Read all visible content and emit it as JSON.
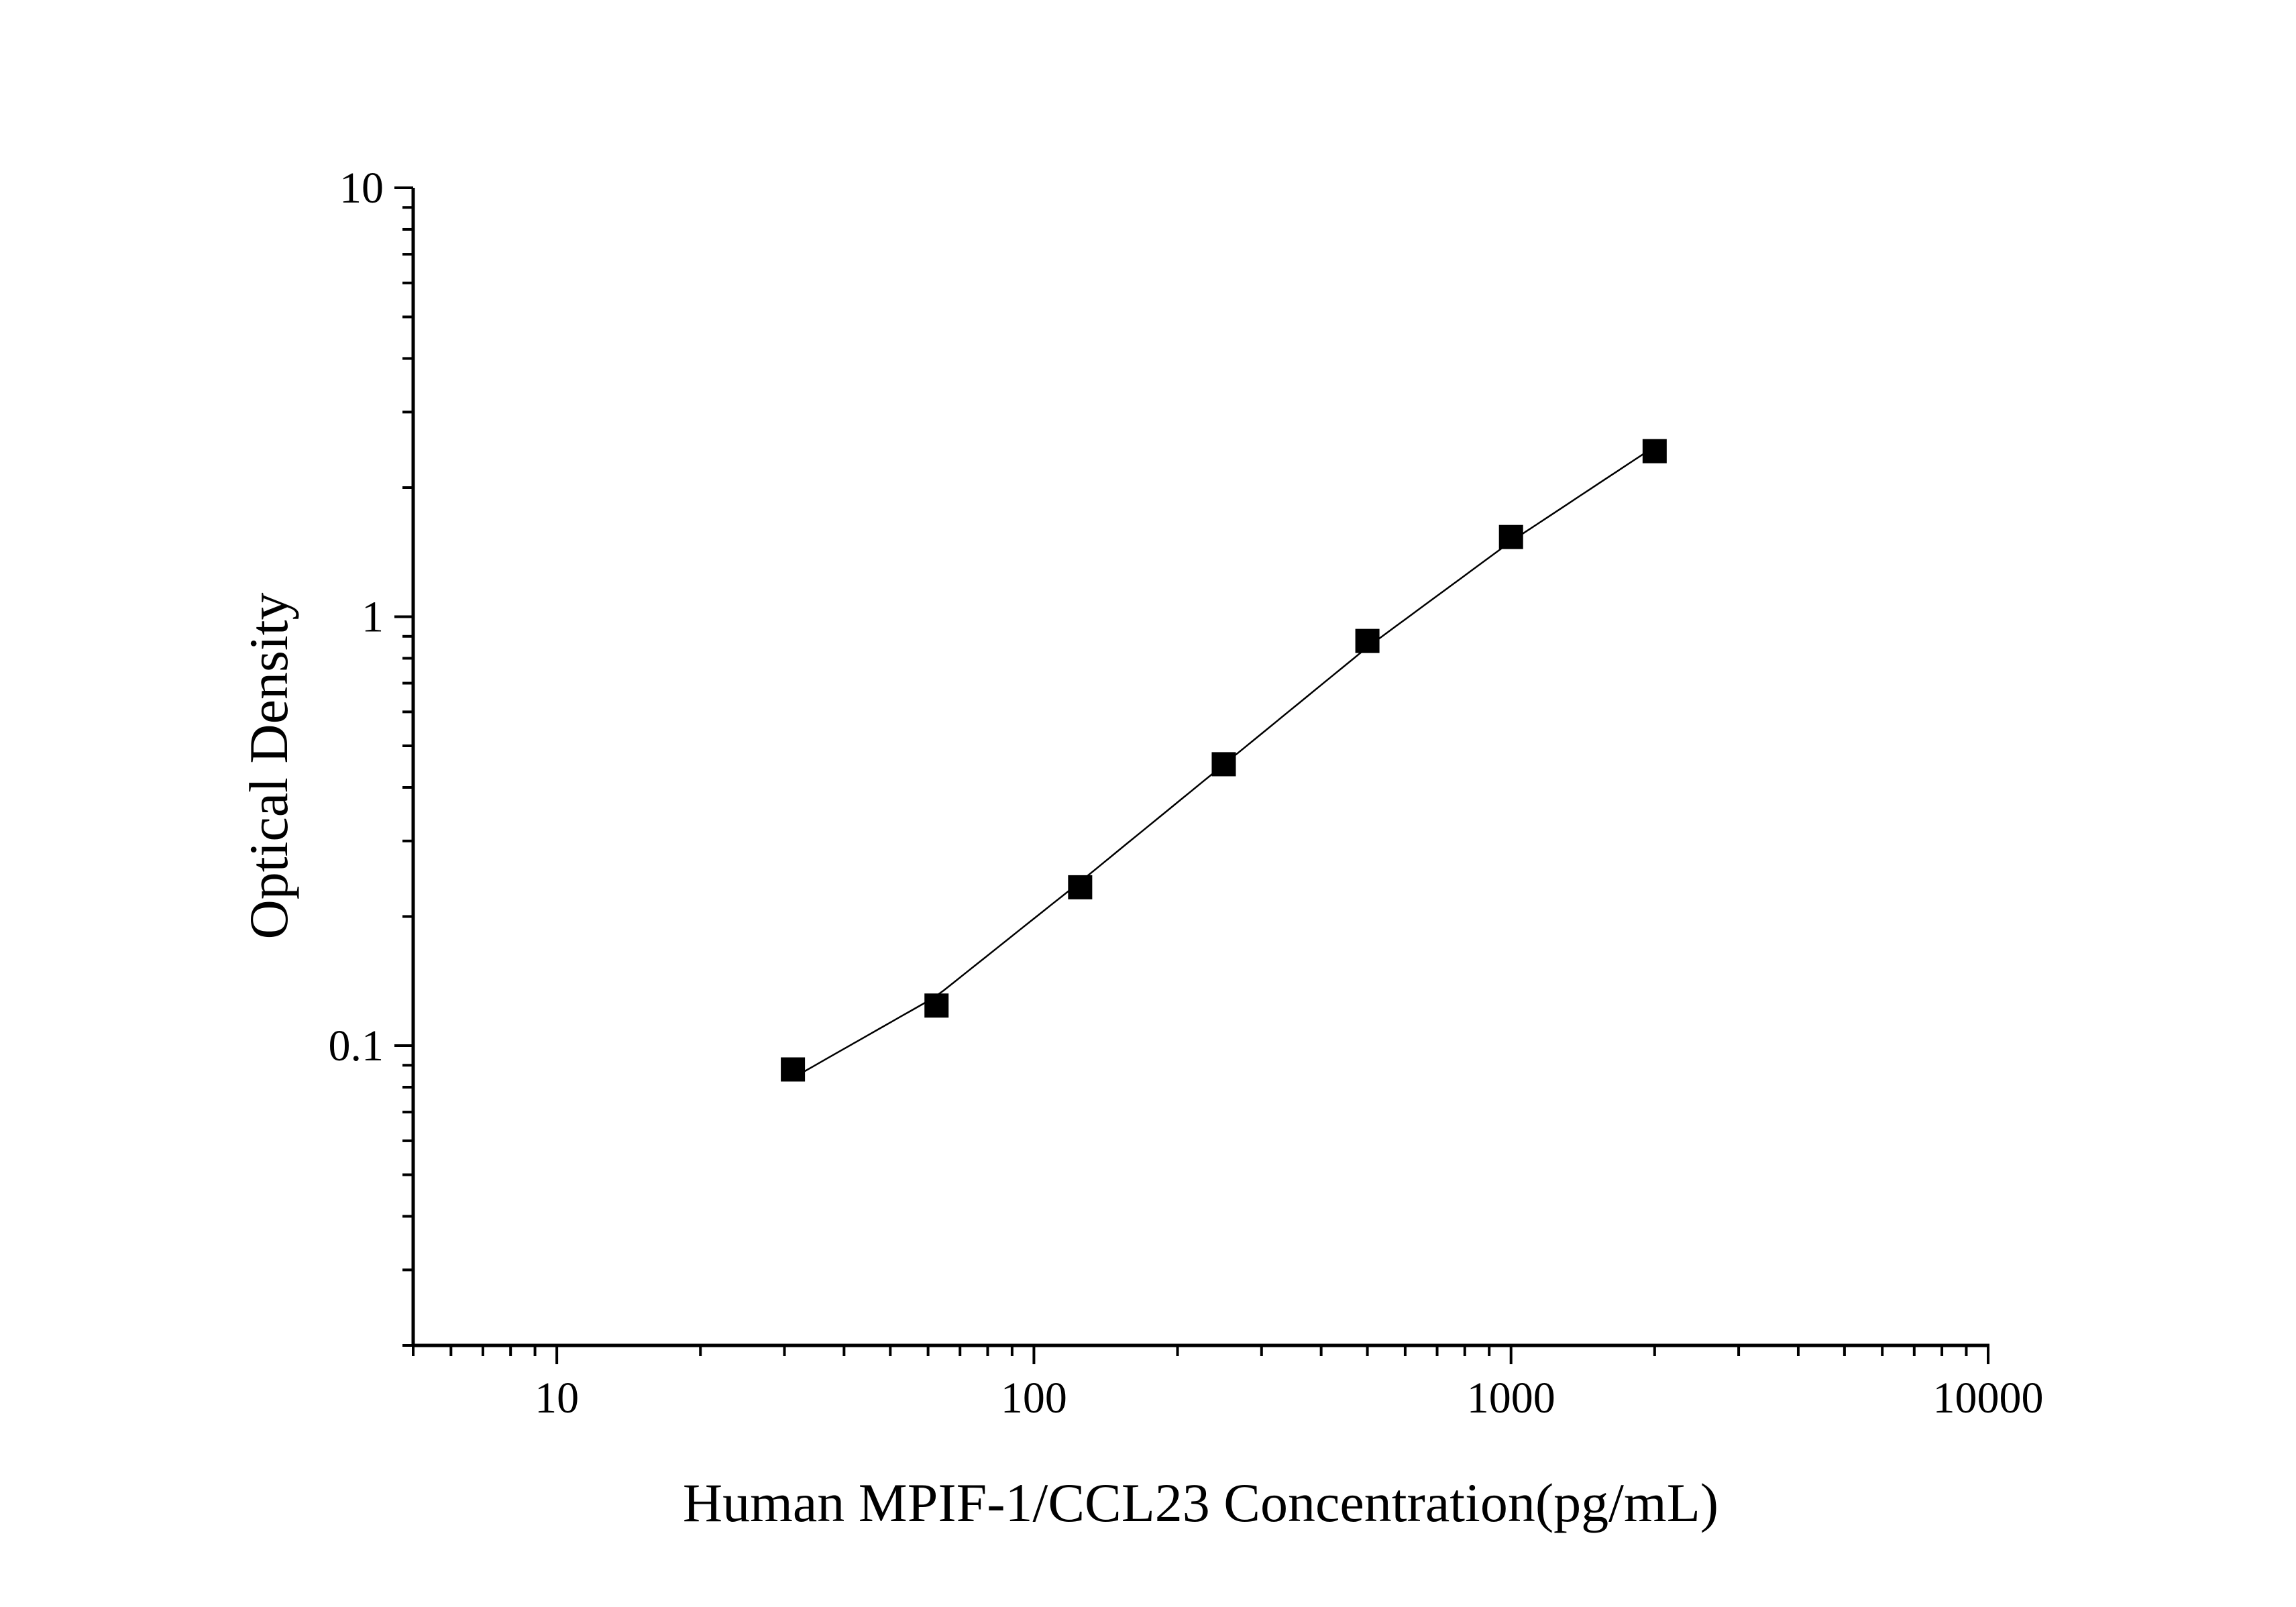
{
  "chart_data": {
    "type": "scatter",
    "title": "",
    "xlabel": "Human MPIF-1/CCL23 Concentration(pg/mL)",
    "ylabel": "Optical Density",
    "x_scale": "log",
    "y_scale": "log",
    "xlim": [
      5,
      10000
    ],
    "ylim": [
      0.02,
      10
    ],
    "x_ticks": [
      {
        "value": 10,
        "label": "10"
      },
      {
        "value": 100,
        "label": "100"
      },
      {
        "value": 1000,
        "label": "1000"
      },
      {
        "value": 10000,
        "label": "10000"
      }
    ],
    "y_ticks": [
      {
        "value": 0.1,
        "label": "0.1"
      },
      {
        "value": 1,
        "label": "1"
      },
      {
        "value": 10,
        "label": "10"
      }
    ],
    "grid": false,
    "legend": "none",
    "series": [
      {
        "marker": "square",
        "color": "#000000",
        "fit_line": true,
        "points": [
          {
            "x": 31.25,
            "y": 0.088
          },
          {
            "x": 62.5,
            "y": 0.124
          },
          {
            "x": 125,
            "y": 0.234
          },
          {
            "x": 250,
            "y": 0.453
          },
          {
            "x": 500,
            "y": 0.878
          },
          {
            "x": 1000,
            "y": 1.534
          },
          {
            "x": 2000,
            "y": 2.432
          }
        ]
      }
    ]
  }
}
